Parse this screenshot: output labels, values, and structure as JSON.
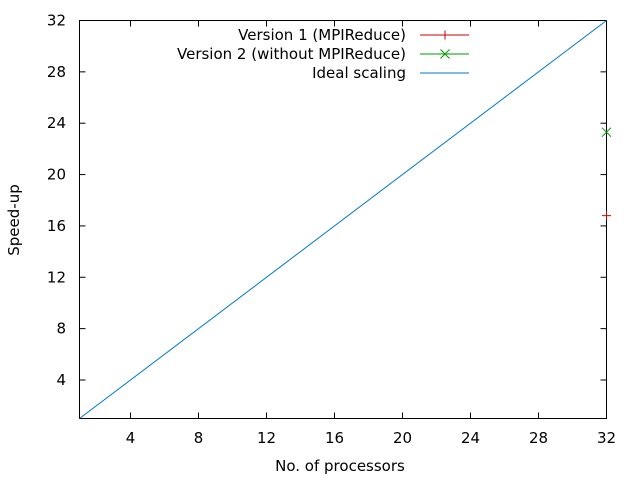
{
  "chart_data": {
    "type": "line",
    "title": "",
    "xlabel": "No. of processors",
    "ylabel": "Speed-up",
    "xlim": [
      1,
      32
    ],
    "ylim": [
      1,
      32
    ],
    "xticks": [
      4,
      8,
      12,
      16,
      20,
      24,
      28,
      32
    ],
    "yticks": [
      4,
      8,
      12,
      16,
      20,
      24,
      28,
      32
    ],
    "grid": false,
    "legend_position": "top-right",
    "series": [
      {
        "name": "Version 1 (MPIReduce)",
        "style": "points",
        "marker": "plus",
        "color": "#cc0000",
        "x": [
          32
        ],
        "y": [
          16.8
        ]
      },
      {
        "name": "Version 2 (without MPIReduce)",
        "style": "points",
        "marker": "cross",
        "color": "#009900",
        "x": [
          32
        ],
        "y": [
          23.3
        ]
      },
      {
        "name": "Ideal scaling",
        "style": "line",
        "color": "#0077cc",
        "x": [
          1,
          32
        ],
        "y": [
          1,
          32
        ]
      }
    ]
  }
}
